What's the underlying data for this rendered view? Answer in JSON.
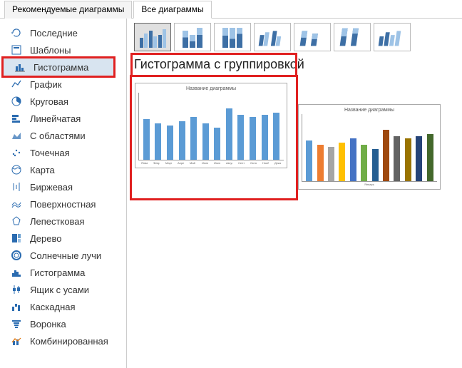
{
  "tabs": {
    "recommended": "Рекомендуемые диаграммы",
    "all": "Все диаграммы"
  },
  "sidebar": {
    "items": [
      {
        "label": "Последние",
        "icon": "recent"
      },
      {
        "label": "Шаблоны",
        "icon": "template"
      },
      {
        "label": "Гистограмма",
        "icon": "column",
        "selected": true
      },
      {
        "label": "График",
        "icon": "line"
      },
      {
        "label": "Круговая",
        "icon": "pie"
      },
      {
        "label": "Линейчатая",
        "icon": "bar"
      },
      {
        "label": "С областями",
        "icon": "area"
      },
      {
        "label": "Точечная",
        "icon": "scatter"
      },
      {
        "label": "Карта",
        "icon": "map"
      },
      {
        "label": "Биржевая",
        "icon": "stock"
      },
      {
        "label": "Поверхностная",
        "icon": "surface"
      },
      {
        "label": "Лепестковая",
        "icon": "radar"
      },
      {
        "label": "Дерево",
        "icon": "treemap"
      },
      {
        "label": "Солнечные лучи",
        "icon": "sunburst"
      },
      {
        "label": "Гистограмма",
        "icon": "histogram"
      },
      {
        "label": "Ящик с усами",
        "icon": "boxwhisker"
      },
      {
        "label": "Каскадная",
        "icon": "waterfall"
      },
      {
        "label": "Воронка",
        "icon": "funnel"
      },
      {
        "label": "Комбинированная",
        "icon": "combo"
      }
    ]
  },
  "chart_heading": "Гистограмма с группировкой",
  "preview": {
    "title": "Название диаграммы",
    "type": "bar",
    "categories": [
      "Январь",
      "Февраль",
      "Март",
      "Апрель",
      "Май",
      "Июнь",
      "Июль",
      "Август",
      "Сентябрь",
      "Октябрь",
      "Ноябрь",
      "Декабрь"
    ],
    "values_blue": [
      38,
      34,
      32,
      36,
      40,
      34,
      30,
      48,
      42,
      40,
      42,
      44
    ],
    "values_multi": [
      38,
      34,
      32,
      36,
      40,
      34,
      30,
      48,
      42,
      40,
      42,
      44
    ],
    "ylim": [
      0,
      60
    ],
    "ytick_step": 10,
    "bar_color_blue": "#5b9bd5",
    "multi_colors": [
      "#5b9bd5",
      "#ed7d31",
      "#a5a5a5",
      "#ffc000",
      "#4472c4",
      "#70ad47",
      "#255e91",
      "#9e480e",
      "#636363",
      "#997300",
      "#264478",
      "#43682b"
    ],
    "background_color": "#ffffff",
    "grid_color": "#e0e0e0",
    "label_fontsize": 4
  },
  "subtype_icons": [
    "clustered",
    "stacked",
    "stacked100",
    "clustered3d",
    "stacked3d",
    "stacked3d100",
    "column3d"
  ]
}
